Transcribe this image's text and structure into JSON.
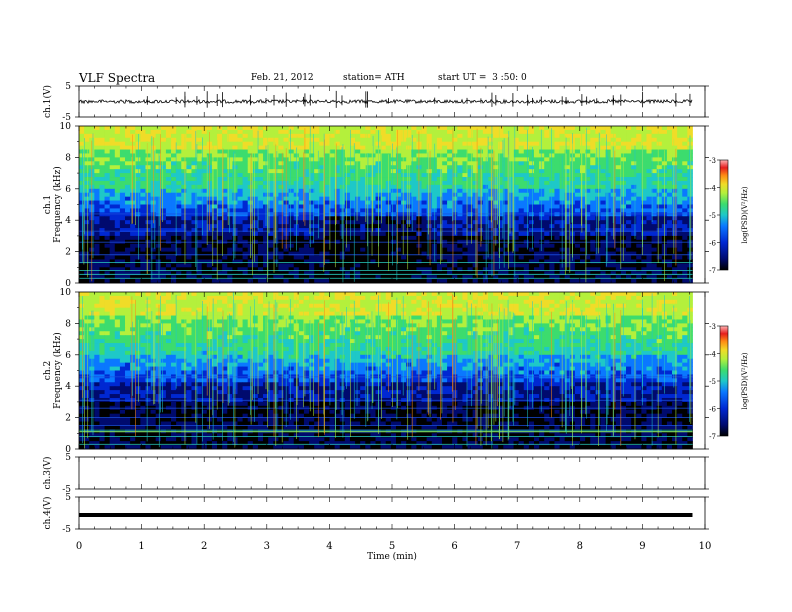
{
  "header": {
    "title": "VLF Spectra",
    "date": "Feb. 21, 2012",
    "station": "station= ATH",
    "start_ut": "start UT =  3 :50: 0"
  },
  "chart_data": [
    {
      "type": "line",
      "panel": "ch1-waveform",
      "ylabel": "ch.1(V)",
      "ylim": [
        -5,
        5
      ],
      "yticks": [
        5,
        -5
      ],
      "xlim": [
        0,
        10
      ],
      "data_extent_min": [
        0,
        9.8
      ],
      "description_values": {
        "baseline_V": 0,
        "spike_amplitude_V": 1.5
      }
    },
    {
      "type": "heatmap",
      "panel": "ch1-spectrogram",
      "ylabel_channel": "ch.1",
      "ylabel": "Frequency (kHz)",
      "ylim": [
        0,
        10
      ],
      "yticks": [
        0,
        2,
        4,
        6,
        8,
        10
      ],
      "xlim": [
        0,
        10
      ],
      "colorbar": {
        "label": "log(PSD)(V²/Hz)",
        "range": [
          -7,
          -3
        ],
        "ticks": [
          "-3",
          "-4",
          "-5",
          "-6",
          "-7"
        ]
      }
    },
    {
      "type": "heatmap",
      "panel": "ch2-spectrogram",
      "ylabel_channel": "ch.2",
      "ylabel": "Frequency (kHz)",
      "ylim": [
        0,
        10
      ],
      "yticks": [
        0,
        2,
        4,
        6,
        8,
        10
      ],
      "xlim": [
        0,
        10
      ],
      "colorbar": {
        "label": "log(PSD)(V²/Hz)",
        "range": [
          -7,
          -3
        ],
        "ticks": [
          "-3",
          "-4",
          "-5",
          "-6",
          "-7"
        ]
      }
    },
    {
      "type": "line",
      "panel": "ch3-waveform",
      "ylabel": "ch.3(V)",
      "ylim": [
        -5,
        5
      ],
      "yticks": [
        5,
        -5
      ],
      "xlim": [
        0,
        10
      ]
    },
    {
      "type": "line",
      "panel": "ch4-waveform",
      "ylabel": "ch.4(V)",
      "ylim": [
        -5,
        5
      ],
      "yticks": [
        5,
        -5
      ],
      "xlim": [
        0,
        10
      ],
      "description_values": {
        "baseline_V": 0
      }
    }
  ],
  "xaxis": {
    "label": "Time  (min)",
    "ticks": [
      "0",
      "1",
      "2",
      "3",
      "4",
      "5",
      "6",
      "7",
      "8",
      "9",
      "10"
    ]
  },
  "colors": {
    "colormap": [
      "#000000",
      "#000a6e",
      "#0028d2",
      "#0a78ff",
      "#1ec8c8",
      "#3cdc6e",
      "#b4f03c",
      "#f0dc28",
      "#ff8c14",
      "#e61e1e",
      "#ffb4b4"
    ]
  }
}
